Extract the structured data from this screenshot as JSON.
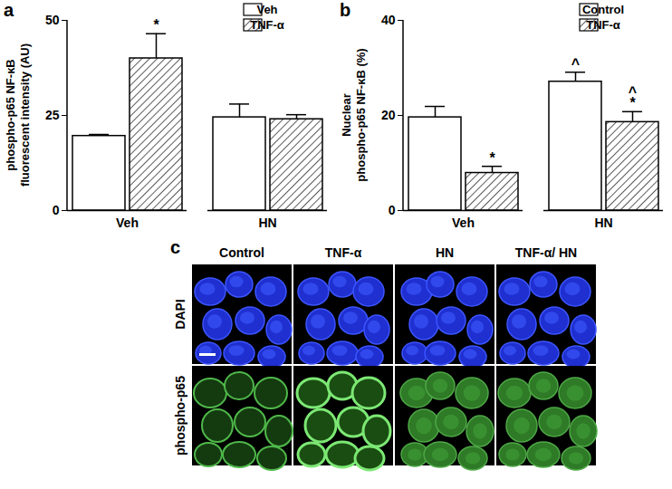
{
  "chart_data": [
    {
      "panel": "a",
      "type": "bar",
      "categories": [
        "Veh",
        "HN"
      ],
      "ylabel": "phospho-p65 NF-κB\nfluorescent intensity (AU)",
      "ylim": [
        0,
        50
      ],
      "yticks": [
        0,
        25,
        50
      ],
      "legend": "top-right",
      "series": [
        {
          "name": "Veh",
          "color": "#ffffff",
          "line_style": "solid",
          "values": [
            19.6,
            24.5
          ],
          "errors": [
            0.4,
            3.5
          ]
        },
        {
          "name": "TNF-α",
          "color": "#000000",
          "line_style": "hatched",
          "values": [
            40,
            24
          ],
          "errors": [
            6.5,
            1.2
          ]
        }
      ],
      "annotations": [
        {
          "category": "Veh",
          "series": "TNF-α",
          "text": "*"
        }
      ]
    },
    {
      "panel": "b",
      "type": "bar",
      "categories": [
        "Veh",
        "HN"
      ],
      "ylabel": "Nuclear\nphospho-p65 NF-κB (%)",
      "ylim": [
        0,
        40
      ],
      "yticks": [
        0,
        20,
        40
      ],
      "legend": "top-right",
      "series": [
        {
          "name": "Control",
          "color": "#ffffff",
          "line_style": "solid",
          "values": [
            19.6,
            27.1
          ],
          "errors": [
            2.3,
            2.0
          ]
        },
        {
          "name": "TNF-α",
          "color": "#000000",
          "line_style": "hatched",
          "values": [
            7.9,
            18.6
          ],
          "errors": [
            1.4,
            2.2
          ]
        }
      ],
      "annotations": [
        {
          "category": "Veh",
          "series": "TNF-α",
          "text": "*"
        },
        {
          "category": "HN",
          "series": "Control",
          "text": "^"
        },
        {
          "category": "HN",
          "series": "TNF-α",
          "text": "*"
        },
        {
          "category": "HN",
          "series": "TNF-α",
          "text": "^"
        }
      ]
    }
  ],
  "images": {
    "panel": "c",
    "columns": [
      "Control",
      "TNF-α",
      "HN",
      "TNF-α/ HN"
    ],
    "rows": [
      "DAPI",
      "phospho-p65"
    ]
  }
}
